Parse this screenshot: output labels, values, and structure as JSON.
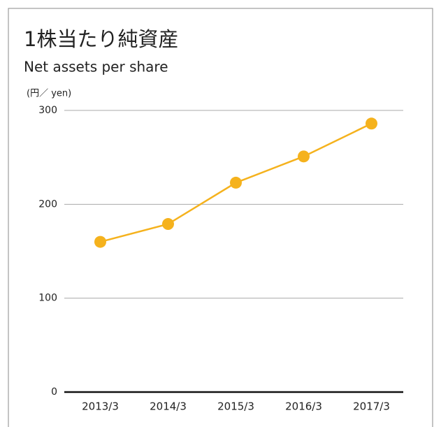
{
  "chart_data": {
    "type": "line",
    "title": "1株当たり純資産",
    "subtitle": "Net assets per share",
    "y_label": "(円／ yen)",
    "categories": [
      "2013/3",
      "2014/3",
      "2015/3",
      "2016/3",
      "2017/3"
    ],
    "values": [
      160,
      179,
      223,
      251,
      286
    ],
    "color": "#f5b21d",
    "ylim": [
      0,
      300
    ],
    "yticks": [
      0,
      100,
      200,
      300
    ],
    "grid": true
  }
}
